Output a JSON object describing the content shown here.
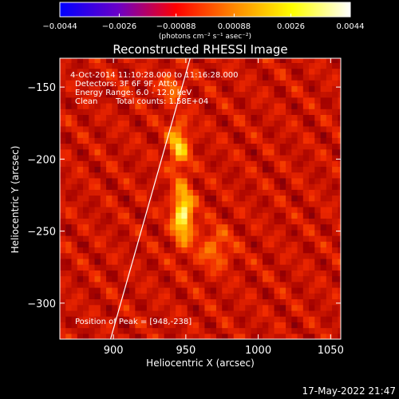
{
  "chart_data": {
    "type": "heatmap",
    "title": "Reconstructed RHESSI Image",
    "xlabel": "Heliocentric X (arcsec)",
    "ylabel": "Heliocentric Y (arcsec)",
    "xlim": [
      863,
      1057
    ],
    "ylim": [
      -325,
      -130
    ],
    "x_ticks": [
      900,
      950,
      1000,
      1050
    ],
    "y_ticks": [
      -150,
      -200,
      -250,
      -300
    ],
    "x_tick_labels": [
      "900",
      "950",
      "1000",
      "1050"
    ],
    "y_tick_labels": [
      "−150",
      "−200",
      "−250",
      "−300"
    ],
    "colorbar": {
      "min": -0.0044,
      "max": 0.0044,
      "ticks": [
        -0.0044,
        -0.0026,
        -0.00088,
        0.00088,
        0.0026,
        0.0044
      ],
      "tick_labels": [
        "−0.0044",
        "−0.0026",
        "−0.00088",
        "0.00088",
        "0.0026",
        "0.0044"
      ],
      "units": "(photons cm⁻² s⁻¹ asec⁻²)",
      "colormap": [
        "#0000ff",
        "#6a00c8",
        "#ff0000",
        "#ff8800",
        "#ffff00",
        "#ffffff"
      ]
    },
    "annotations": {
      "time_range": "4-Oct-2014 11:10:28.000 to 11:16:28.000",
      "detectors": "Detectors: 3F 6F 9F, Att:0",
      "energy": "Energy Range: 6.0 - 12.0 keV",
      "method": "Clean",
      "total_counts": "Total counts: 1.58E+04",
      "peak": "Position of Peak = [948,-238]"
    },
    "peak": [
      948,
      -238
    ],
    "limb_line": [
      [
        898,
        -325
      ],
      [
        953,
        -130
      ]
    ],
    "sources": [
      {
        "x": 948,
        "y": -238,
        "sigma_x": 5,
        "sigma_y": 14,
        "amplitude": 1.0
      },
      {
        "x": 945,
        "y": -190,
        "sigma_x": 5,
        "sigma_y": 12,
        "amplitude": 0.72
      },
      {
        "x": 970,
        "y": -262,
        "sigma_x": 8,
        "sigma_y": 10,
        "amplitude": 0.42
      },
      {
        "x": 940,
        "y": -150,
        "sigma_x": 5,
        "sigma_y": 7,
        "amplitude": 0.45
      }
    ],
    "datestamp": "17-May-2022 21:47",
    "colors": {
      "background": "#000000",
      "text": "#ffffff",
      "limb": "#ffffff"
    }
  }
}
